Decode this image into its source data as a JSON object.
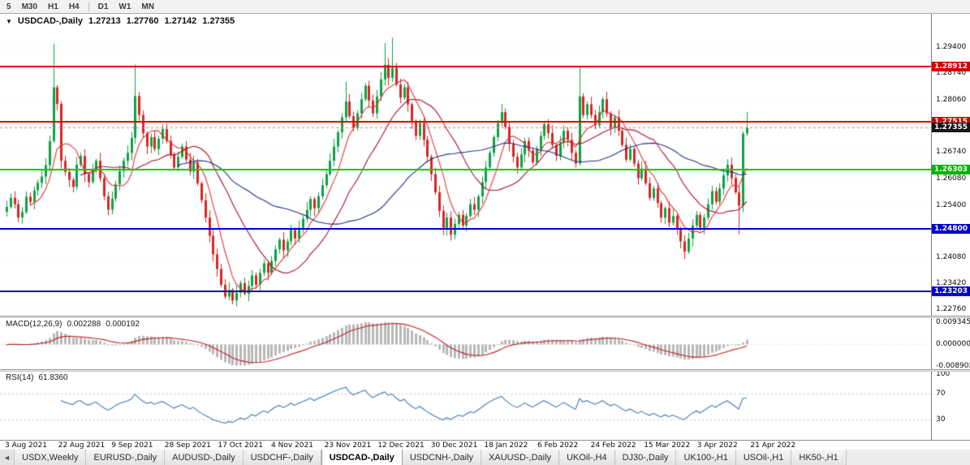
{
  "toolbar": {
    "timeframes": [
      "5",
      "M30",
      "H1",
      "H4",
      "D1",
      "W1",
      "MN"
    ]
  },
  "chart": {
    "collapse_icon": "▼",
    "symbol": "USDCAD-,Daily",
    "open": "1.27213",
    "high": "1.27760",
    "low": "1.27142",
    "close": "1.27355"
  },
  "price_axis": {
    "ticks": [
      "1.29400",
      "1.28740",
      "1.28060",
      "1.26740",
      "1.26080",
      "1.25400",
      "1.24080",
      "1.23420",
      "1.22760"
    ],
    "tags": [
      {
        "text": "1.28912",
        "bg": "#d40000"
      },
      {
        "text": "1.27515",
        "bg": "#d40000"
      },
      {
        "text": "1.27355",
        "bg": "#161616"
      },
      {
        "text": "1.26303",
        "bg": "#00b400"
      },
      {
        "text": "1.24800",
        "bg": "#0000cd"
      },
      {
        "text": "1.23203",
        "bg": "#0000cd"
      }
    ]
  },
  "levels": [
    {
      "price": 1.28912,
      "color": "#dd0000"
    },
    {
      "price": 1.27515,
      "color": "#dd0000"
    },
    {
      "price": 1.26303,
      "color": "#00cc00"
    },
    {
      "price": 1.248,
      "color": "#0000cd"
    },
    {
      "price": 1.23203,
      "color": "#0000cd"
    }
  ],
  "macd": {
    "name": "MACD(12,26,9)",
    "main_value": "0.002288",
    "signal_value": "0.000192",
    "axis": [
      "0.009345",
      "0.000000",
      "-0.008902"
    ],
    "histogram_color": "#b8b8b8",
    "signal_color": "#c02020"
  },
  "rsi": {
    "name": "RSI(14)",
    "value": "61.8360",
    "axis": [
      "100",
      "70",
      "30"
    ],
    "levels": [
      70,
      30
    ],
    "line_color": "#3d7ab5"
  },
  "time_axis": [
    "3 Aug 2021",
    "22 Aug 2021",
    "9 Sep 2021",
    "28 Sep 2021",
    "17 Oct 2021",
    "4 Nov 2021",
    "23 Nov 2021",
    "12 Dec 2021",
    "30 Dec 2021",
    "18 Jan 2022",
    "6 Feb 2022",
    "24 Feb 2022",
    "15 Mar 2022",
    "3 Apr 2022",
    "21 Apr 2022"
  ],
  "tabs": {
    "scroll_left": "◄",
    "active": "USDCAD-,Daily",
    "items": [
      "USDX,Weekly",
      "EURUSD-,Daily",
      "AUDUSD-,Daily",
      "USDCHF-,Daily",
      "USDCAD-,Daily",
      "USDCNH-,Daily",
      "XAUUSD-,Daily",
      "UKOil-,H4",
      "DJ30-,Daily",
      "UK100-,H1",
      "USOil-,H1",
      "HK50-,H1"
    ],
    "note": "bottom chart tab row"
  },
  "chart_data": {
    "type": "candlestick",
    "symbol": "USDCAD",
    "timeframe": "Daily",
    "ylim": [
      1.22596,
      1.30243
    ],
    "last_candle": {
      "open": 1.27213,
      "high": 1.2776,
      "low": 1.27142,
      "close": 1.27355
    },
    "bull_color": "#0fa142",
    "bear_color": "#d42626",
    "macd_ylim": [
      -0.01073,
      0.01107
    ],
    "rsi_ylim": [
      0,
      100
    ],
    "moving_averages": [
      {
        "period": 7,
        "color": "#e23434"
      },
      {
        "period": 20,
        "color": "#a8102e"
      },
      {
        "period": 45,
        "color": "#223080"
      }
    ],
    "closes": [
      1.2535,
      1.2558,
      1.2542,
      1.2508,
      1.2522,
      1.2561,
      1.2548,
      1.2577,
      1.2596,
      1.2612,
      1.2641,
      1.2702,
      1.2838,
      1.2796,
      1.2652,
      1.2624,
      1.2604,
      1.2586,
      1.2642,
      1.2664,
      1.2618,
      1.2598,
      1.2628,
      1.2652,
      1.2608,
      1.2562,
      1.2528,
      1.2556,
      1.2592,
      1.2626,
      1.2652,
      1.2672,
      1.271,
      1.2816,
      1.2768,
      1.2722,
      1.2688,
      1.2712,
      1.2682,
      1.2708,
      1.2732,
      1.2702,
      1.2668,
      1.2635,
      1.2662,
      1.2688,
      1.2655,
      1.2625,
      1.2648,
      1.2595,
      1.2552,
      1.2508,
      1.2462,
      1.2415,
      1.2378,
      1.2338,
      1.2308,
      1.2325,
      1.2298,
      1.2318,
      1.2342,
      1.2315,
      1.2335,
      1.2362,
      1.2338,
      1.2368,
      1.2392,
      1.2368,
      1.2398,
      1.2428,
      1.2452,
      1.2425,
      1.2448,
      1.2478,
      1.2455,
      1.2482,
      1.2505,
      1.2528,
      1.2555,
      1.2532,
      1.2562,
      1.259,
      1.2618,
      1.2652,
      1.2688,
      1.2724,
      1.2762,
      1.2802,
      1.2765,
      1.2735,
      1.2772,
      1.2808,
      1.2842,
      1.2805,
      1.2772,
      1.2815,
      1.2858,
      1.2895,
      1.2862,
      1.2888,
      1.2845,
      1.2812,
      1.2838,
      1.2795,
      1.2752,
      1.2715,
      1.2748,
      1.2705,
      1.2662,
      1.2618,
      1.2572,
      1.2525,
      1.2482,
      1.2508,
      1.2465,
      1.2492,
      1.2515,
      1.2488,
      1.2512,
      1.2542,
      1.2528,
      1.2562,
      1.2598,
      1.2635,
      1.2672,
      1.2712,
      1.2748,
      1.2775,
      1.2738,
      1.2695,
      1.2662,
      1.2635,
      1.2668,
      1.2702,
      1.2678,
      1.2648,
      1.2682,
      1.2715,
      1.2745,
      1.2722,
      1.2692,
      1.2665,
      1.2698,
      1.2728,
      1.2705,
      1.2672,
      1.2645,
      1.2815,
      1.2768,
      1.2795,
      1.2768,
      1.2742,
      1.2775,
      1.2808,
      1.2772,
      1.2735,
      1.2762,
      1.2728,
      1.2692,
      1.2655,
      1.2682,
      1.2645,
      1.2608,
      1.2632,
      1.2595,
      1.2558,
      1.2582,
      1.2545,
      1.2508,
      1.2532,
      1.2495,
      1.2512,
      1.2478,
      1.2448,
      1.2422,
      1.2455,
      1.2488,
      1.2515,
      1.2482,
      1.2508,
      1.2542,
      1.2575,
      1.2548,
      1.2582,
      1.2615,
      1.2642,
      1.2608,
      1.2572,
      1.2538,
      1.2721,
      1.27355
    ],
    "wick_overrides": {
      "12": {
        "high": 1.2948
      },
      "33": {
        "high": 1.2896
      },
      "58": {
        "low": 1.2288
      },
      "87": {
        "high": 1.2852
      },
      "97": {
        "high": 1.295
      },
      "99": {
        "high": 1.2964
      },
      "127": {
        "high": 1.2796
      },
      "147": {
        "high": 1.289,
        "low": 1.264
      },
      "174": {
        "low": 1.2403
      },
      "188": {
        "low": 1.2466
      },
      "190": {
        "open": 1.27213,
        "high": 1.2776,
        "low": 1.27142
      }
    }
  }
}
